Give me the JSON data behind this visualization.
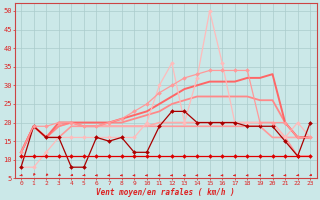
{
  "background_color": "#cbe8e8",
  "grid_color": "#aacccc",
  "xlabel": "Vent moyen/en rafales ( km/h )",
  "ylabel_ticks": [
    5,
    10,
    15,
    20,
    25,
    30,
    35,
    40,
    45,
    50
  ],
  "ylim": [
    5,
    52
  ],
  "xlim": [
    -0.5,
    23.5
  ],
  "lines": [
    {
      "y": [
        11,
        11,
        11,
        11,
        11,
        11,
        11,
        11,
        11,
        11,
        11,
        11,
        11,
        11,
        11,
        11,
        11,
        11,
        11,
        11,
        11,
        11,
        11,
        11
      ],
      "color": "#dd0000",
      "lw": 0.9,
      "marker": "D",
      "ms": 2.0,
      "zorder": 5
    },
    {
      "y": [
        8,
        19,
        16,
        16,
        8,
        8,
        16,
        15,
        16,
        12,
        12,
        19,
        23,
        23,
        20,
        20,
        20,
        20,
        19,
        19,
        19,
        15,
        11,
        20
      ],
      "color": "#aa0000",
      "lw": 0.9,
      "marker": "D",
      "ms": 2.0,
      "zorder": 4
    },
    {
      "y": [
        12,
        19,
        16,
        16,
        19,
        19,
        19,
        19,
        19,
        19,
        19,
        19,
        19,
        19,
        19,
        19,
        19,
        19,
        19,
        19,
        16,
        16,
        11,
        11
      ],
      "color": "#ff9999",
      "lw": 1.2,
      "marker": null,
      "zorder": 2
    },
    {
      "y": [
        12,
        19,
        16,
        19,
        20,
        19,
        19,
        19,
        19,
        19,
        19,
        20,
        20,
        20,
        20,
        20,
        20,
        20,
        20,
        20,
        20,
        16,
        16,
        16
      ],
      "color": "#ffaaaa",
      "lw": 1.2,
      "marker": null,
      "zorder": 2
    },
    {
      "y": [
        12,
        19,
        16,
        19,
        20,
        19,
        19,
        20,
        20,
        21,
        22,
        23,
        25,
        26,
        27,
        27,
        27,
        27,
        27,
        26,
        26,
        20,
        16,
        16
      ],
      "color": "#ff8888",
      "lw": 1.3,
      "marker": null,
      "zorder": 2
    },
    {
      "y": [
        12,
        19,
        16,
        20,
        20,
        20,
        20,
        20,
        21,
        22,
        23,
        25,
        27,
        29,
        30,
        31,
        31,
        31,
        32,
        32,
        33,
        20,
        16,
        16
      ],
      "color": "#ff6666",
      "lw": 1.4,
      "marker": null,
      "zorder": 3
    },
    {
      "y": [
        12,
        19,
        19,
        20,
        20,
        19,
        19,
        20,
        21,
        23,
        25,
        28,
        30,
        32,
        33,
        34,
        34,
        34,
        34,
        20,
        20,
        20,
        16,
        16
      ],
      "color": "#ff9999",
      "lw": 0.9,
      "marker": "D",
      "ms": 2.0,
      "zorder": 4
    },
    {
      "y": [
        8,
        8,
        12,
        16,
        16,
        16,
        16,
        16,
        16,
        16,
        20,
        30,
        36,
        20,
        32,
        50,
        36,
        20,
        20,
        20,
        20,
        16,
        20,
        16
      ],
      "color": "#ffbbbb",
      "lw": 0.9,
      "marker": "D",
      "ms": 2.0,
      "zorder": 3
    }
  ],
  "arrow_angles": [
    220,
    260,
    250,
    240,
    230,
    220,
    200,
    190,
    185,
    185,
    185,
    185,
    185,
    185,
    185,
    185,
    185,
    185,
    185,
    185,
    185,
    200,
    220,
    230
  ],
  "arrow_color": "#dd2222"
}
